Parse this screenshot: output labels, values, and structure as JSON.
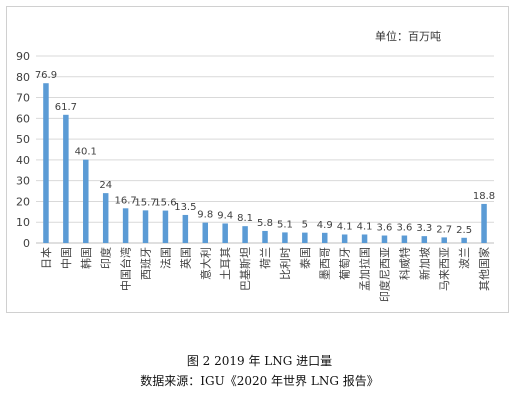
{
  "unit_label": "单位：百万吨",
  "figure_caption": "图 2    2019 年 LNG 进口量",
  "source_caption": "数据来源：IGU《2020 年世界 LNG 报告》",
  "colors": {
    "bar": "#5b9bd5",
    "grid": "#d9d9d9",
    "text": "#404040"
  },
  "chart_data": {
    "type": "bar",
    "title": "",
    "xlabel": "",
    "ylabel": "",
    "ylim": [
      0,
      90
    ],
    "yticks": [
      0,
      10,
      20,
      30,
      40,
      50,
      60,
      70,
      80,
      90
    ],
    "grid": true,
    "data_labels": true,
    "categories": [
      "日本",
      "中国",
      "韩国",
      "印度",
      "中国台湾",
      "西班牙",
      "法国",
      "英国",
      "意大利",
      "土耳其",
      "巴基斯坦",
      "荷兰",
      "比利时",
      "泰国",
      "墨西哥",
      "葡萄牙",
      "孟加拉国",
      "印度尼西亚",
      "科威特",
      "新加坡",
      "马来西亚",
      "波兰",
      "其他国家"
    ],
    "values": [
      76.9,
      61.7,
      40.1,
      24,
      16.7,
      15.7,
      15.6,
      13.5,
      9.8,
      9.4,
      8.1,
      5.8,
      5.1,
      5,
      4.9,
      4.1,
      4.1,
      3.6,
      3.6,
      3.3,
      2.7,
      2.5,
      18.8
    ]
  }
}
